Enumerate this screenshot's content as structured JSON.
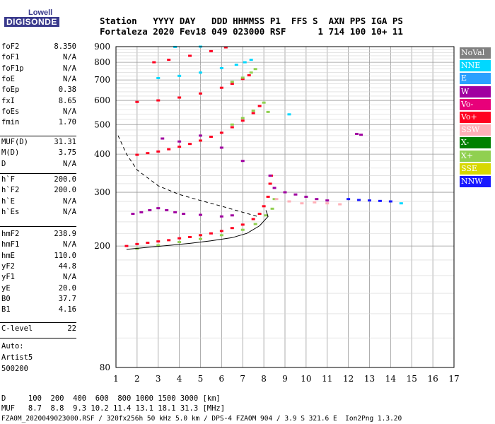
{
  "logo": {
    "top": "Lowell",
    "bottom": "DIGISONDE"
  },
  "header": {
    "line1": "Station   YYYY DAY   DDD HHMMSS P1  FFS S  AXN PPS IGA PS",
    "line2": "Fortaleza 2020 Fev18 049 023000 RSF      1 714 100 10+ 11"
  },
  "params": {
    "g1": [
      {
        "label": "foF2",
        "value": "8.350"
      },
      {
        "label": "foF1",
        "value": "N/A"
      },
      {
        "label": "foF1p",
        "value": "N/A"
      },
      {
        "label": "foE",
        "value": "N/A"
      },
      {
        "label": "foEp",
        "value": "0.38"
      },
      {
        "label": "fxI",
        "value": "8.65"
      },
      {
        "label": "foEs",
        "value": "N/A"
      },
      {
        "label": "fmin",
        "value": "1.70"
      }
    ],
    "g2": [
      {
        "label": "MUF(D)",
        "value": "31.31"
      },
      {
        "label": "M(D)",
        "value": "3.75"
      },
      {
        "label": "D",
        "value": "N/A"
      }
    ],
    "g3": [
      {
        "label": "h`F",
        "value": "200.0"
      },
      {
        "label": "h`F2",
        "value": "200.0"
      },
      {
        "label": "h`E",
        "value": "N/A"
      },
      {
        "label": "h`Es",
        "value": "N/A"
      }
    ],
    "g4": [
      {
        "label": "hmF2",
        "value": "238.9"
      },
      {
        "label": "hmF1",
        "value": "N/A"
      },
      {
        "label": "hmE",
        "value": "110.0"
      },
      {
        "label": "yF2",
        "value": "44.8"
      },
      {
        "label": "yF1",
        "value": "N/A"
      },
      {
        "label": "yE",
        "value": "20.0"
      },
      {
        "label": "B0",
        "value": "37.7"
      },
      {
        "label": "B1",
        "value": "4.16"
      }
    ],
    "g5": [
      {
        "label": "C-level",
        "value": "22"
      }
    ]
  },
  "auto": {
    "line1": "Auto:",
    "line2": "Artist5",
    "line3": "500200"
  },
  "legend": [
    {
      "label": "NoVal",
      "color": "#808080"
    },
    {
      "label": "NNE",
      "color": "#00d8ff"
    },
    {
      "label": "E",
      "color": "#2aa0ff"
    },
    {
      "label": "W",
      "color": "#a000a0"
    },
    {
      "label": "Vo-",
      "color": "#e8007a"
    },
    {
      "label": "Vo+",
      "color": "#ff0020"
    },
    {
      "label": "SSW",
      "color": "#ffb0b8"
    },
    {
      "label": "X-",
      "color": "#008000"
    },
    {
      "label": "X+",
      "color": "#90d050"
    },
    {
      "label": "SSE",
      "color": "#d8d800"
    },
    {
      "label": "NNW",
      "color": "#1a1aff"
    }
  ],
  "footer": {
    "line1": "D     100  200  400  600  800 1000 1500 3000 [km]",
    "line2": "MUF   8.7  8.8  9.3 10.2 11.4 13.1 18.1 31.3 [MHz]",
    "line3": "FZA0M_2020049023000.RSF / 320fx256h 50 kHz 5.0 km / DPS-4 FZA0M 904 / 3.9 S 321.6 E  Ion2Png 1.3.20"
  },
  "chart_data": {
    "type": "scatter",
    "title": "",
    "xlabel": "",
    "ylabel": "",
    "xlim": [
      1,
      17
    ],
    "ylim": [
      80,
      900
    ],
    "xticks": [
      "1",
      "2",
      "3",
      "4",
      "5",
      "6",
      "7",
      "8",
      "9",
      "10",
      "11",
      "12",
      "13",
      "14",
      "15",
      "16",
      "17"
    ],
    "yticks": [
      "80",
      "200",
      "300",
      "400",
      "500",
      "600",
      "700",
      "800",
      "900"
    ],
    "y_scale": "log",
    "grid": true,
    "series": [
      {
        "name": "Vo+",
        "color": "#ff0020",
        "points": [
          [
            1.5,
            200
          ],
          [
            2,
            203
          ],
          [
            2.5,
            205
          ],
          [
            3,
            207
          ],
          [
            3.5,
            209
          ],
          [
            4,
            212
          ],
          [
            4.5,
            214
          ],
          [
            5,
            217
          ],
          [
            5.5,
            220
          ],
          [
            6,
            224
          ],
          [
            6.5,
            229
          ],
          [
            7,
            235
          ],
          [
            7.5,
            245
          ],
          [
            7.8,
            255
          ],
          [
            8.0,
            270
          ],
          [
            8.2,
            290
          ],
          [
            8.3,
            320
          ],
          [
            8.35,
            340
          ],
          [
            2,
            398
          ],
          [
            2.5,
            403
          ],
          [
            3,
            408
          ],
          [
            3.5,
            415
          ],
          [
            4,
            423
          ],
          [
            4.5,
            432
          ],
          [
            5,
            443
          ],
          [
            5.5,
            456
          ],
          [
            6,
            470
          ],
          [
            6.5,
            490
          ],
          [
            7,
            515
          ],
          [
            7.5,
            545
          ],
          [
            7.8,
            575
          ],
          [
            2,
            593
          ],
          [
            3,
            600
          ],
          [
            4,
            613
          ],
          [
            5,
            632
          ],
          [
            6,
            660
          ],
          [
            6.5,
            680
          ],
          [
            7,
            705
          ],
          [
            7.3,
            725
          ],
          [
            2.8,
            800
          ],
          [
            3.5,
            815
          ],
          [
            4.5,
            840
          ],
          [
            5.5,
            870
          ],
          [
            6.2,
            895
          ]
        ]
      },
      {
        "name": "X+",
        "color": "#90d050",
        "points": [
          [
            2,
            196
          ],
          [
            3,
            201
          ],
          [
            4,
            206
          ],
          [
            5,
            211
          ],
          [
            6,
            217
          ],
          [
            7,
            226
          ],
          [
            7.6,
            236
          ],
          [
            8.1,
            252
          ],
          [
            8.4,
            265
          ],
          [
            8.5,
            285
          ],
          [
            6.5,
            500
          ],
          [
            7,
            525
          ],
          [
            7.5,
            555
          ],
          [
            8,
            590
          ],
          [
            8.2,
            550
          ],
          [
            6.5,
            690
          ],
          [
            7,
            712
          ],
          [
            7.4,
            740
          ],
          [
            7.6,
            760
          ]
        ]
      },
      {
        "name": "W",
        "color": "#a000a0",
        "points": [
          [
            1.8,
            255
          ],
          [
            2.2,
            258
          ],
          [
            2.6,
            262
          ],
          [
            3,
            266
          ],
          [
            3.4,
            262
          ],
          [
            3.8,
            258
          ],
          [
            4.2,
            255
          ],
          [
            5,
            253
          ],
          [
            6,
            250
          ],
          [
            6.5,
            252
          ],
          [
            3.2,
            450
          ],
          [
            4,
            440
          ],
          [
            5,
            460
          ],
          [
            6,
            420
          ],
          [
            7,
            380
          ],
          [
            8.3,
            340
          ],
          [
            8.5,
            310
          ],
          [
            9,
            300
          ],
          [
            9.5,
            295
          ],
          [
            10,
            290
          ],
          [
            10.5,
            285
          ],
          [
            11,
            282
          ],
          [
            12.4,
            466
          ],
          [
            12.6,
            463
          ]
        ]
      },
      {
        "name": "SSW",
        "color": "#ffb0b8",
        "points": [
          [
            8.6,
            285
          ],
          [
            9.2,
            280
          ],
          [
            9.8,
            276
          ],
          [
            10.4,
            278
          ],
          [
            11,
            276
          ],
          [
            11.6,
            274
          ]
        ]
      },
      {
        "name": "NNE",
        "color": "#00d8ff",
        "points": [
          [
            3,
            710
          ],
          [
            4,
            722
          ],
          [
            5,
            740
          ],
          [
            6,
            765
          ],
          [
            6.7,
            785
          ],
          [
            7.1,
            800
          ],
          [
            7.4,
            815
          ],
          [
            3.8,
            898
          ],
          [
            5,
            900
          ],
          [
            9.2,
            540
          ],
          [
            14.5,
            276
          ]
        ]
      },
      {
        "name": "NNW",
        "color": "#1a1aff",
        "points": [
          [
            12,
            285
          ],
          [
            12.5,
            283
          ],
          [
            13,
            282
          ],
          [
            13.5,
            281
          ],
          [
            14,
            280
          ]
        ]
      }
    ],
    "curves": [
      {
        "name": "",
        "style": "dashed",
        "points": [
          [
            1.1,
            460
          ],
          [
            1.5,
            400
          ],
          [
            2,
            355
          ],
          [
            3,
            315
          ],
          [
            4,
            295
          ],
          [
            5,
            282
          ],
          [
            6,
            270
          ],
          [
            7,
            258
          ],
          [
            7.7,
            250
          ]
        ]
      },
      {
        "name": "",
        "style": "solid",
        "points": [
          [
            1.5,
            195
          ],
          [
            2.5,
            198
          ],
          [
            3.5,
            201
          ],
          [
            4.5,
            204
          ],
          [
            5.5,
            208
          ],
          [
            6.5,
            213
          ],
          [
            7.2,
            220
          ],
          [
            7.8,
            233
          ],
          [
            8.2,
            250
          ],
          [
            8.1,
            262
          ]
        ]
      }
    ]
  }
}
